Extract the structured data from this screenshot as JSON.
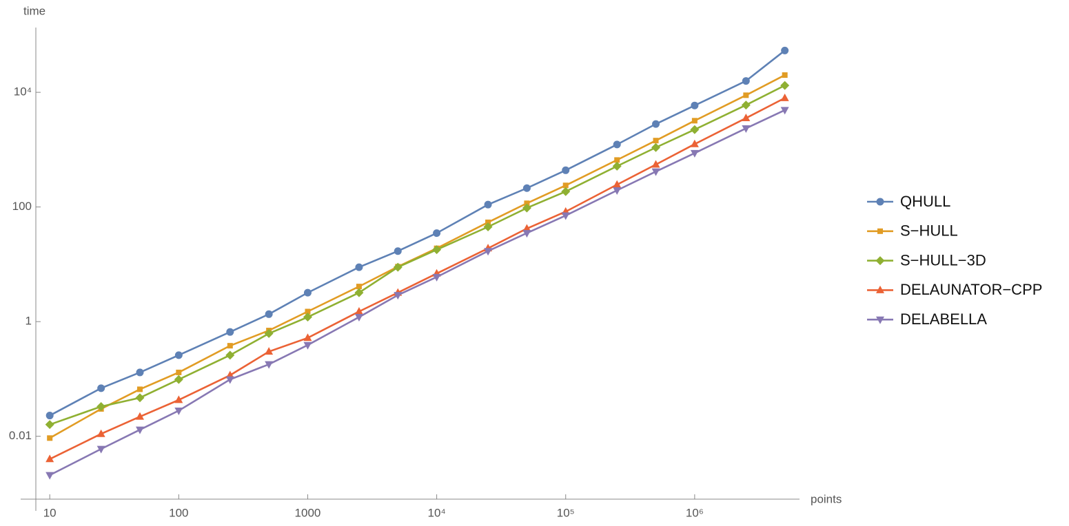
{
  "chart_data": {
    "type": "line",
    "x_label": "points",
    "y_label": "time",
    "log_x": true,
    "log_y": true,
    "x": [
      10,
      25,
      50,
      100,
      250,
      500,
      1000,
      2500,
      5000,
      10000,
      25000,
      50000,
      100000,
      250000,
      500000,
      1000000,
      2500000,
      5000000
    ],
    "xlim": [
      7.8,
      6500000
    ],
    "xticks": [
      10,
      100,
      1000,
      {
        "value": 10000,
        "label": "10⁴"
      },
      {
        "value": 100000,
        "label": "10⁵"
      },
      {
        "value": 1000000,
        "label": "10⁶"
      }
    ],
    "ylim": [
      0.0008,
      135000
    ],
    "yticks": [
      0.01,
      1,
      100,
      {
        "value": 10000,
        "label": "10⁴"
      }
    ],
    "legend": "right",
    "series": [
      {
        "name": "QHULL",
        "color": "#5e81b5",
        "marker": "circle",
        "values": [
          0.023,
          0.069,
          0.13,
          0.26,
          0.66,
          1.35,
          3.2,
          8.9,
          17,
          35,
          110,
          213,
          437,
          1230,
          2800,
          5900,
          15800,
          53700
        ]
      },
      {
        "name": "S−HULL",
        "color": "#e19c24",
        "marker": "square",
        "values": [
          0.0093,
          0.03,
          0.066,
          0.13,
          0.38,
          0.7,
          1.5,
          4.1,
          9.1,
          19,
          54,
          116,
          238,
          660,
          1440,
          3200,
          8900,
          20000
        ]
      },
      {
        "name": "S−HULL−3D",
        "color": "#8fb032",
        "marker": "diamond",
        "values": [
          0.016,
          0.033,
          0.047,
          0.098,
          0.26,
          0.62,
          1.2,
          3.2,
          8.9,
          18,
          45,
          96,
          186,
          515,
          1090,
          2240,
          6000,
          13200
        ]
      },
      {
        "name": "DELAUNATOR−CPP",
        "color": "#eb6235",
        "marker": "triangle-up",
        "values": [
          0.004,
          0.011,
          0.022,
          0.043,
          0.116,
          0.3,
          0.52,
          1.5,
          3.2,
          6.9,
          19,
          42,
          83,
          245,
          550,
          1250,
          3550,
          7950
        ]
      },
      {
        "name": "DELABELLA",
        "color": "#8778b3",
        "marker": "triangle-down",
        "values": [
          0.0021,
          0.006,
          0.013,
          0.028,
          0.098,
          0.18,
          0.39,
          1.2,
          2.9,
          6.0,
          17,
          35,
          71,
          195,
          415,
          870,
          2350,
          4900
        ]
      }
    ]
  }
}
